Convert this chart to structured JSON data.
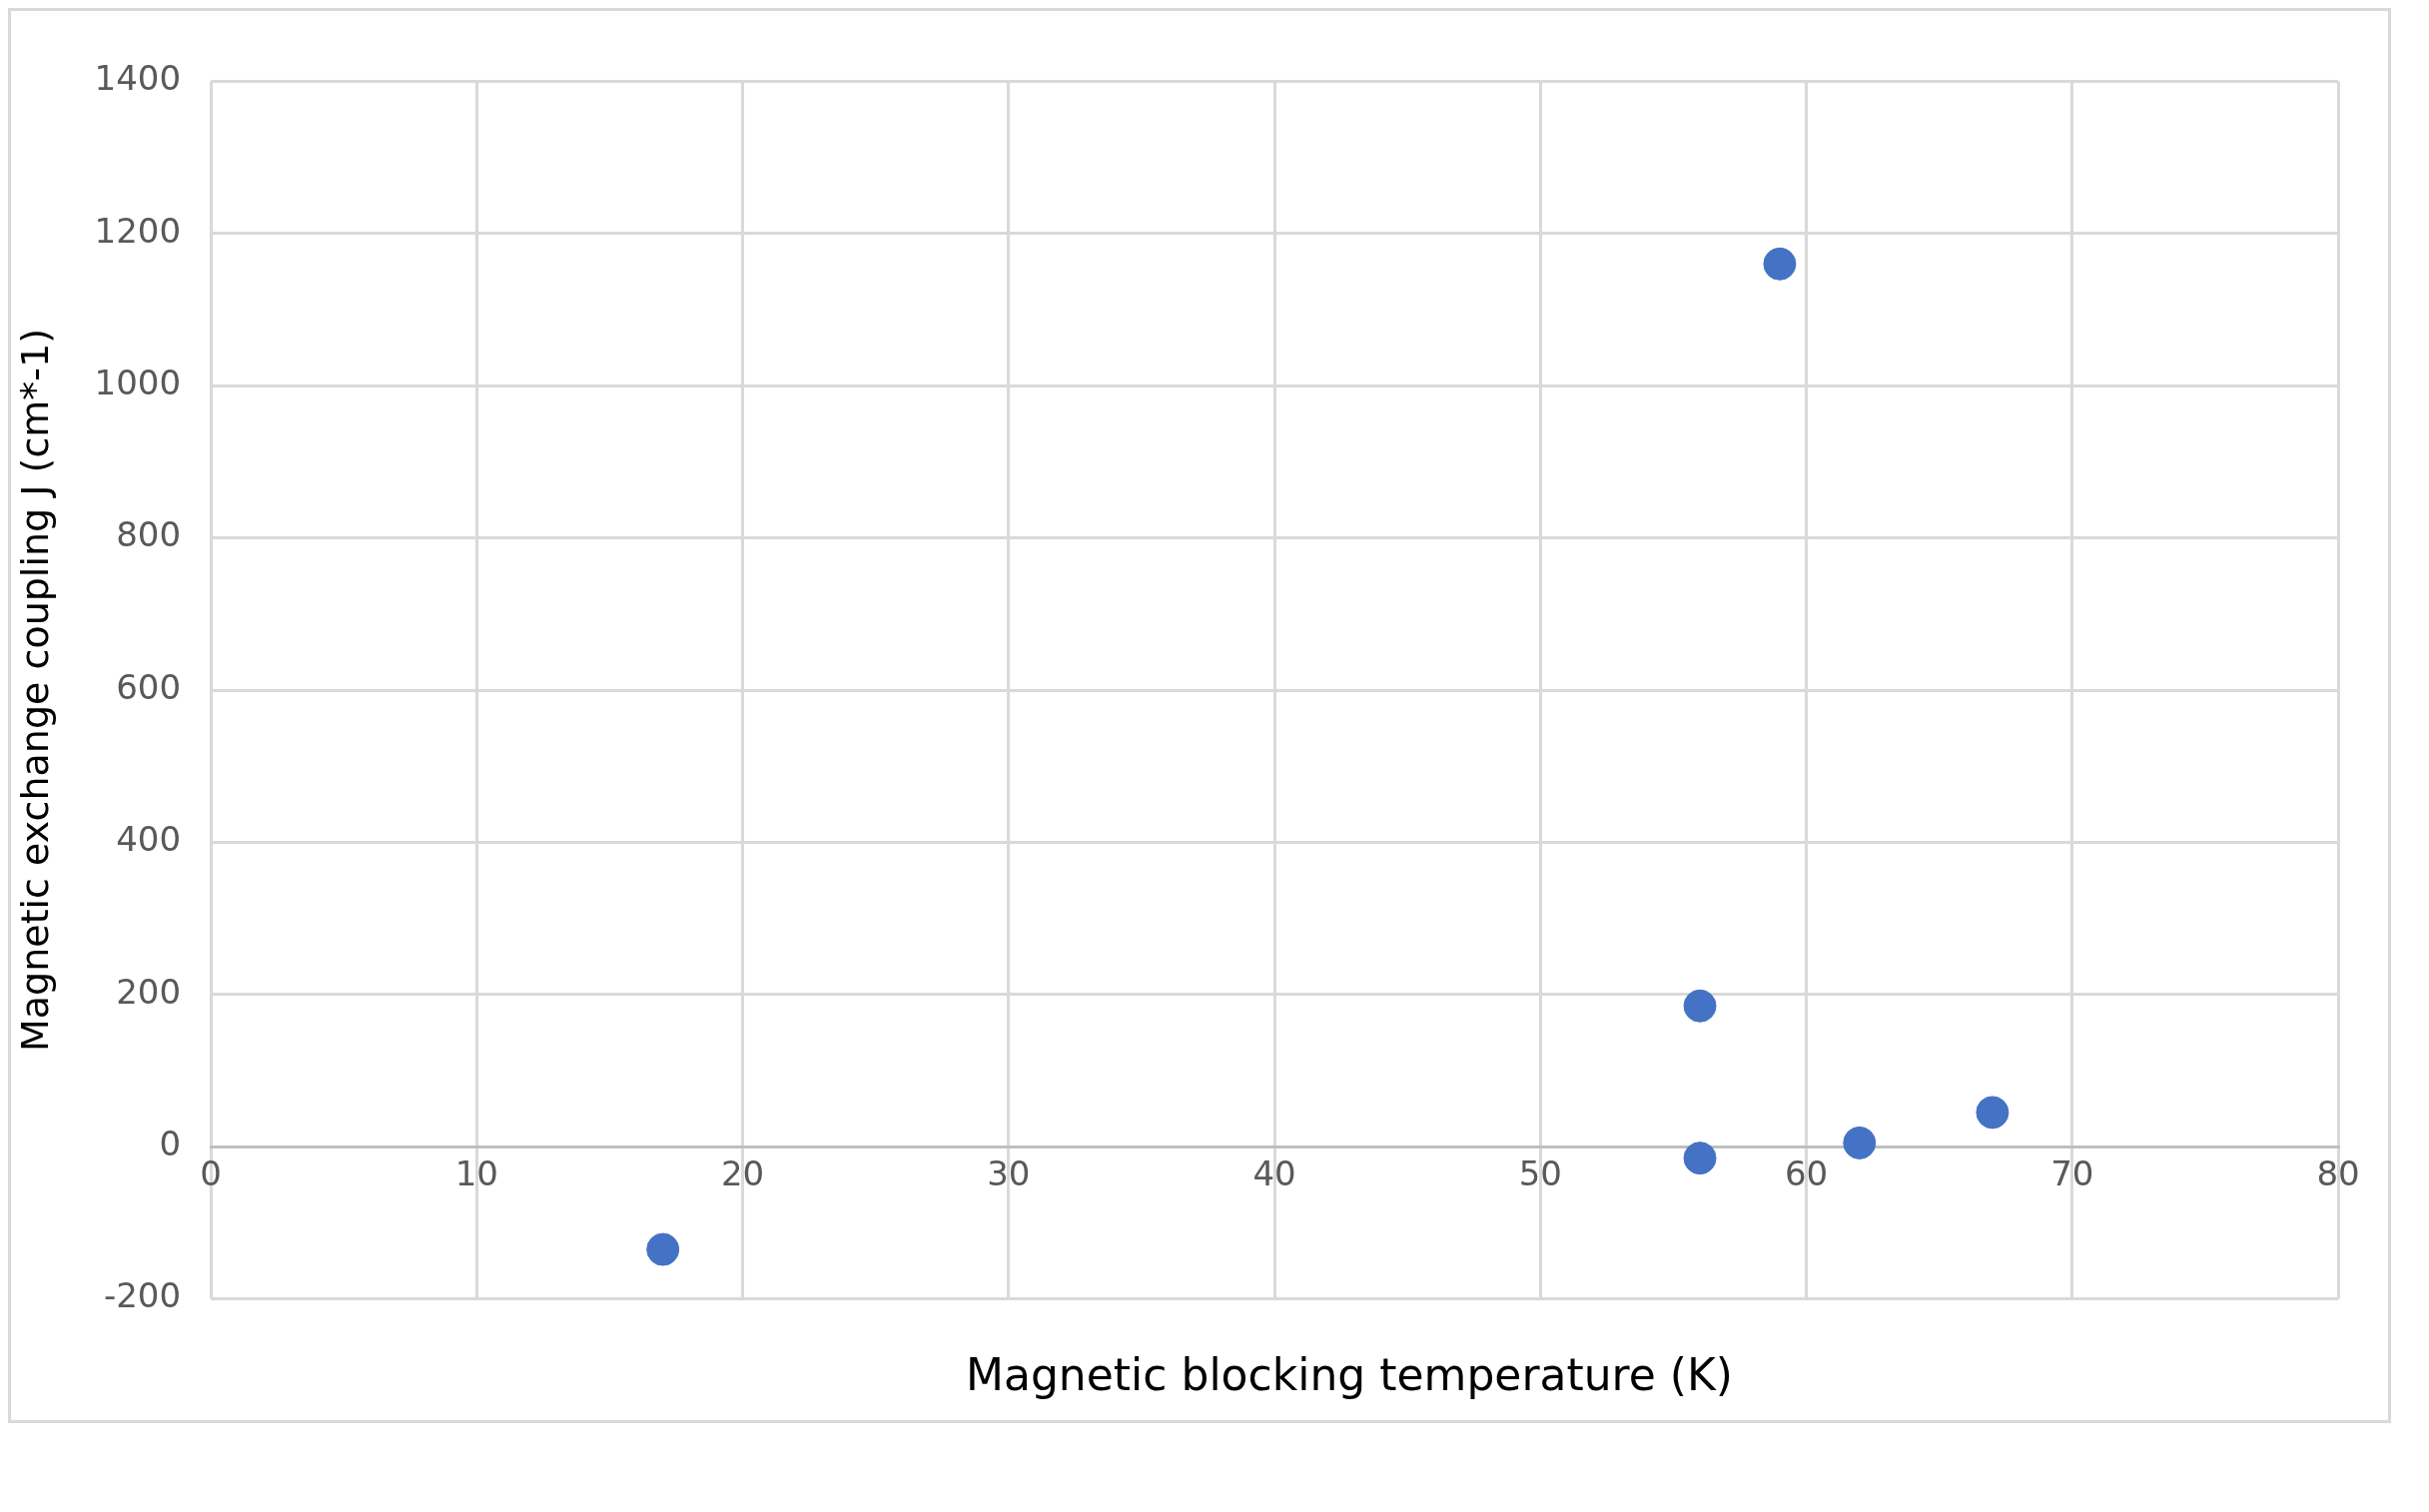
{
  "chart_data": {
    "type": "scatter",
    "xlabel": "Magnetic blocking temperature  (K)",
    "ylabel": "Magnetic exchange coupling J (cm*-1)",
    "x": [
      17,
      56,
      56,
      59,
      62,
      67
    ],
    "values": [
      -135,
      185,
      -15,
      1160,
      5,
      45
    ],
    "color": "#4472c4",
    "marker": "circle",
    "xlim": [
      0,
      80
    ],
    "xticks": [
      0,
      10,
      20,
      30,
      40,
      50,
      60,
      70,
      80
    ],
    "ylim": [
      -200,
      1400
    ],
    "yticks": [
      -200,
      0,
      200,
      400,
      600,
      800,
      1000,
      1200,
      1400
    ],
    "grid": true
  }
}
